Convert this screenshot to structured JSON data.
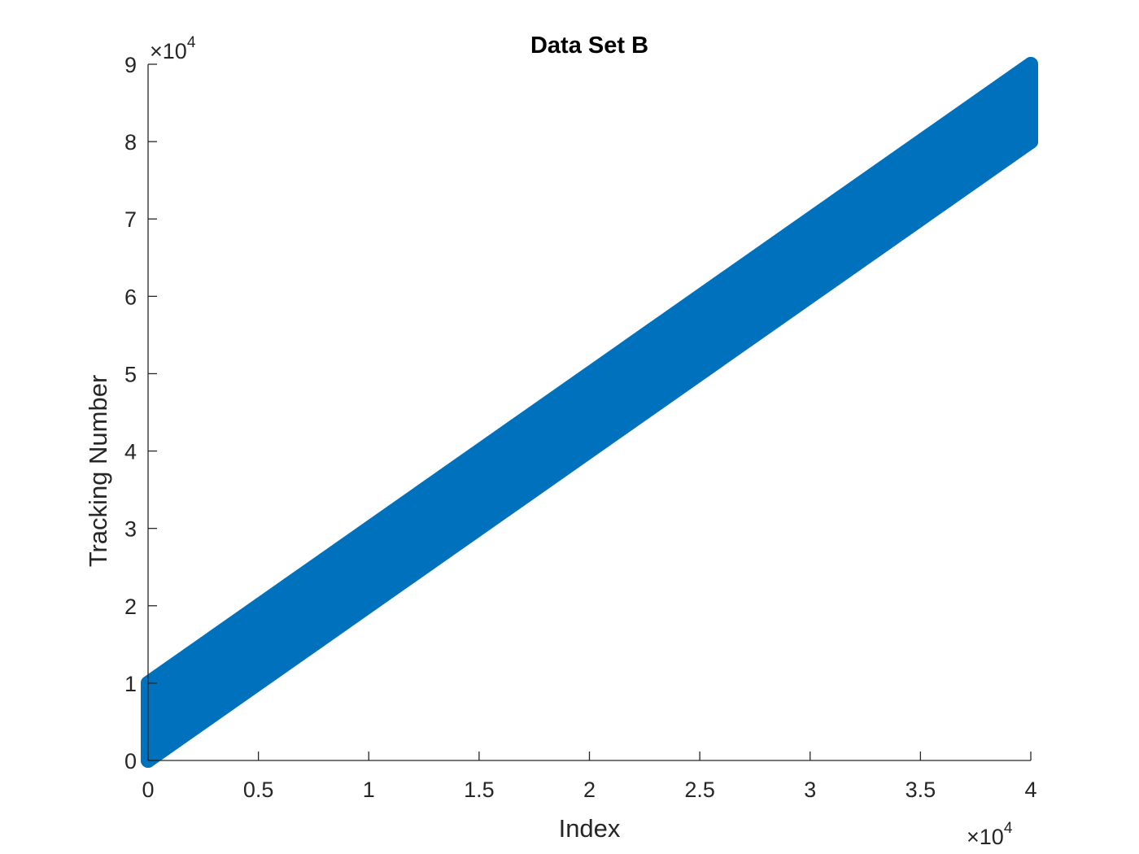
{
  "chart_data": {
    "type": "scatter",
    "title": "Data Set B",
    "xlabel": "Index",
    "ylabel": "Tracking Number",
    "xlim": [
      0,
      40000
    ],
    "ylim": [
      0,
      90000
    ],
    "x_ticks": [
      0,
      5000,
      10000,
      15000,
      20000,
      25000,
      30000,
      35000,
      40000
    ],
    "x_tick_labels": [
      "0",
      "0.5",
      "1",
      "1.5",
      "2",
      "2.5",
      "3",
      "3.5",
      "4"
    ],
    "y_ticks": [
      0,
      10000,
      20000,
      30000,
      40000,
      50000,
      60000,
      70000,
      80000,
      90000
    ],
    "y_tick_labels": [
      "0",
      "1",
      "2",
      "3",
      "4",
      "5",
      "6",
      "7",
      "8",
      "9"
    ],
    "x_exponent": {
      "base": "×10",
      "power": "4"
    },
    "y_exponent": {
      "base": "×10",
      "power": "4"
    },
    "series": [
      {
        "color": "#0072BD",
        "marker": "circle",
        "band": {
          "x": [
            0,
            40000
          ],
          "y_lower": [
            0,
            80000
          ],
          "y_upper": [
            10000,
            90000
          ]
        }
      }
    ],
    "grid": false,
    "legend": "none"
  }
}
